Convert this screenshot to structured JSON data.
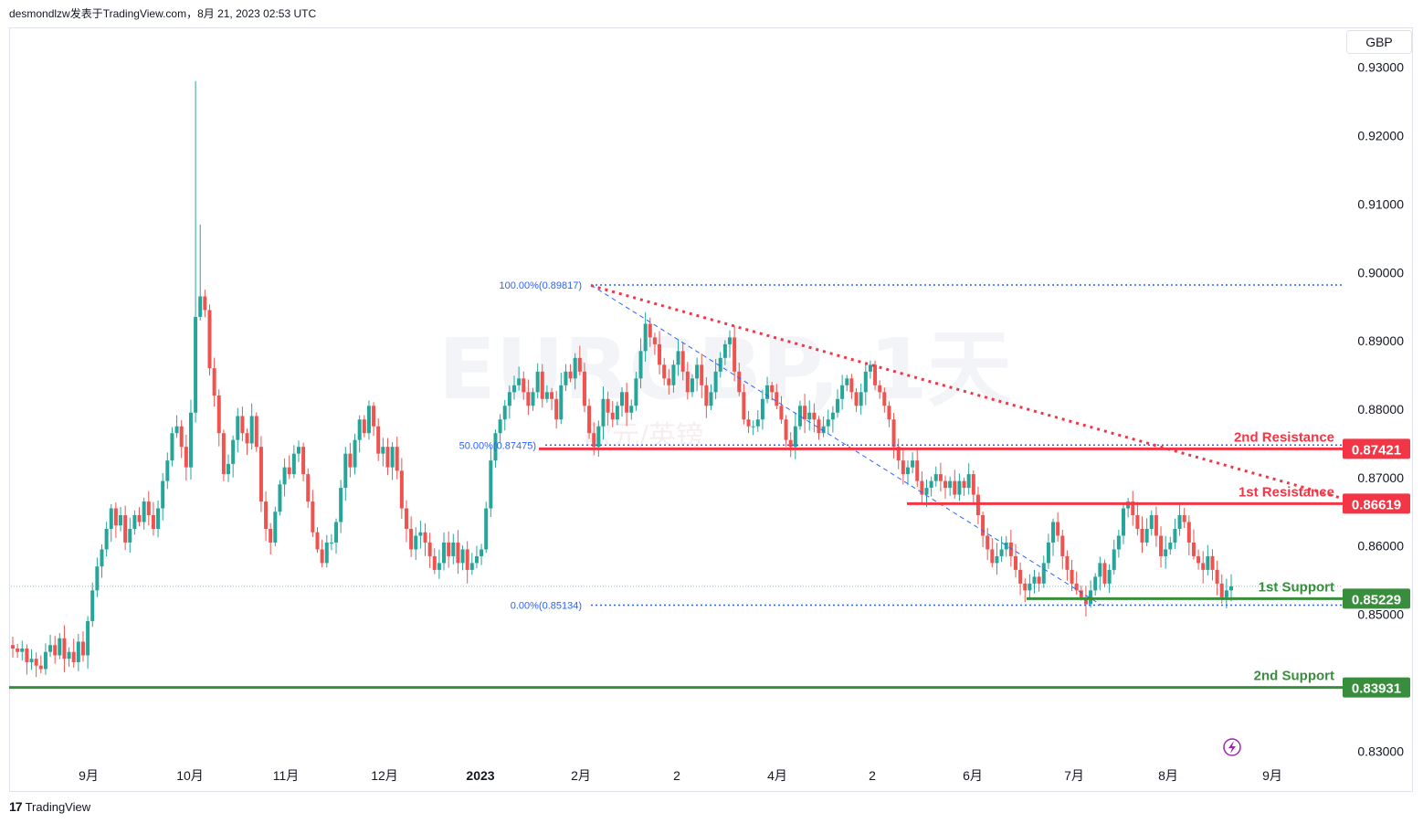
{
  "header": {
    "text": "desmondlzw发表于TradingView.com，8月 21, 2023 02:53 UTC"
  },
  "currency": "GBP",
  "watermark": {
    "symbol": "EURGBP, 1天",
    "sub": "欧元/英镑"
  },
  "footer": {
    "brand": "TradingView",
    "logo": "17"
  },
  "colors": {
    "up": "#26a69a",
    "down": "#ef5350",
    "resistance": "#f23645",
    "support": "#388e3c",
    "fib": "#2962ff"
  },
  "chart_data": {
    "type": "candlestick",
    "ylim": [
      0.8295,
      0.9305
    ],
    "y_ticks": [
      "0.93000",
      "0.92000",
      "0.91000",
      "0.90000",
      "0.89000",
      "0.88000",
      "0.87000",
      "0.86000",
      "0.85000",
      "0.83000"
    ],
    "x_ticks": [
      {
        "label": "9月",
        "bold": false
      },
      {
        "label": "10月",
        "bold": false
      },
      {
        "label": "11月",
        "bold": false
      },
      {
        "label": "12月",
        "bold": false
      },
      {
        "label": "2023",
        "bold": true
      },
      {
        "label": "2月",
        "bold": false
      },
      {
        "label": "2",
        "bold": false
      },
      {
        "label": "4月",
        "bold": false
      },
      {
        "label": "2",
        "bold": false
      },
      {
        "label": "6月",
        "bold": false
      },
      {
        "label": "7月",
        "bold": false
      },
      {
        "label": "8月",
        "bold": false
      },
      {
        "label": "9月",
        "bold": false
      }
    ],
    "levels": [
      {
        "name": "2nd Resistance",
        "value": 0.87421,
        "label": "0.87421",
        "kind": "resistance"
      },
      {
        "name": "1st Resistance",
        "value": 0.86619,
        "label": "0.86619",
        "kind": "resistance"
      },
      {
        "name": "1st Support",
        "value": 0.85229,
        "label": "0.85229",
        "kind": "support"
      },
      {
        "name": "2nd Support",
        "value": 0.83931,
        "label": "0.83931",
        "kind": "support"
      }
    ],
    "fib_levels": [
      {
        "label": "100.00%(0.89817)",
        "value": 0.89817
      },
      {
        "label": "50.00%(0.87475)",
        "value": 0.87475
      },
      {
        "label": "0.00%(0.85134)",
        "value": 0.85134
      }
    ],
    "current_price": 0.8541,
    "trendline": {
      "start": 0.8981,
      "end": 0.8671
    },
    "fib_diagonal": {
      "start": 0.89817,
      "end": 0.85134
    },
    "closes": [
      0.845,
      0.8445,
      0.845,
      0.843,
      0.8435,
      0.8425,
      0.842,
      0.8445,
      0.8455,
      0.844,
      0.8465,
      0.8435,
      0.8445,
      0.843,
      0.846,
      0.844,
      0.849,
      0.8535,
      0.857,
      0.8595,
      0.8625,
      0.8655,
      0.863,
      0.8645,
      0.8605,
      0.8625,
      0.8645,
      0.8635,
      0.8665,
      0.8645,
      0.8625,
      0.8655,
      0.8695,
      0.8725,
      0.8765,
      0.8775,
      0.8745,
      0.8715,
      0.8795,
      0.8935,
      0.8965,
      0.8945,
      0.886,
      0.882,
      0.8765,
      0.8705,
      0.872,
      0.8755,
      0.879,
      0.8765,
      0.875,
      0.879,
      0.8745,
      0.8665,
      0.8625,
      0.8605,
      0.865,
      0.869,
      0.8715,
      0.8705,
      0.8735,
      0.8745,
      0.8705,
      0.8665,
      0.862,
      0.8595,
      0.8575,
      0.8605,
      0.8605,
      0.8635,
      0.8685,
      0.8735,
      0.8715,
      0.8755,
      0.8785,
      0.8765,
      0.8805,
      0.8775,
      0.8735,
      0.8745,
      0.8715,
      0.8745,
      0.871,
      0.8655,
      0.8625,
      0.8595,
      0.8615,
      0.862,
      0.8605,
      0.8585,
      0.8565,
      0.8575,
      0.8605,
      0.8585,
      0.8605,
      0.8575,
      0.8595,
      0.8565,
      0.8575,
      0.8585,
      0.8595,
      0.8655,
      0.8725,
      0.8765,
      0.8785,
      0.8805,
      0.8825,
      0.8835,
      0.8845,
      0.8825,
      0.8805,
      0.8825,
      0.8855,
      0.8815,
      0.8825,
      0.8815,
      0.8785,
      0.8835,
      0.8855,
      0.8845,
      0.8875,
      0.8855,
      0.8805,
      0.8765,
      0.8745,
      0.8775,
      0.8815,
      0.8795,
      0.8785,
      0.8805,
      0.8825,
      0.8795,
      0.8805,
      0.8845,
      0.8885,
      0.8925,
      0.8905,
      0.8895,
      0.8865,
      0.8845,
      0.8835,
      0.8865,
      0.8885,
      0.8855,
      0.8825,
      0.8845,
      0.8865,
      0.8835,
      0.8805,
      0.8825,
      0.8855,
      0.8875,
      0.8895,
      0.8905,
      0.8855,
      0.8825,
      0.8785,
      0.8775,
      0.8775,
      0.8785,
      0.8815,
      0.8835,
      0.8825,
      0.8805,
      0.8785,
      0.8755,
      0.8745,
      0.8775,
      0.8805,
      0.8785,
      0.8795,
      0.8785,
      0.8765,
      0.8775,
      0.8785,
      0.8795,
      0.8815,
      0.8835,
      0.8845,
      0.8825,
      0.8805,
      0.8825,
      0.8855,
      0.8865,
      0.8835,
      0.8825,
      0.8805,
      0.8785,
      0.8745,
      0.8725,
      0.8705,
      0.8715,
      0.8725,
      0.8695,
      0.8675,
      0.8685,
      0.8695,
      0.8705,
      0.8695,
      0.8685,
      0.8695,
      0.8675,
      0.8695,
      0.8685,
      0.8705,
      0.8675,
      0.8645,
      0.8615,
      0.8595,
      0.8575,
      0.8585,
      0.8595,
      0.8605,
      0.8585,
      0.8565,
      0.8545,
      0.8535,
      0.8545,
      0.8555,
      0.8545,
      0.8575,
      0.8605,
      0.8635,
      0.8615,
      0.8585,
      0.8565,
      0.8545,
      0.8535,
      0.8525,
      0.8515,
      0.8535,
      0.8555,
      0.8575,
      0.8545,
      0.8565,
      0.8595,
      0.8615,
      0.8655,
      0.8665,
      0.8645,
      0.8625,
      0.8605,
      0.8625,
      0.8645,
      0.8615,
      0.8585,
      0.8595,
      0.8605,
      0.8625,
      0.8645,
      0.8635,
      0.8605,
      0.8585,
      0.8575,
      0.8565,
      0.8585,
      0.8565,
      0.8545,
      0.8525,
      0.8535,
      0.8541
    ]
  }
}
